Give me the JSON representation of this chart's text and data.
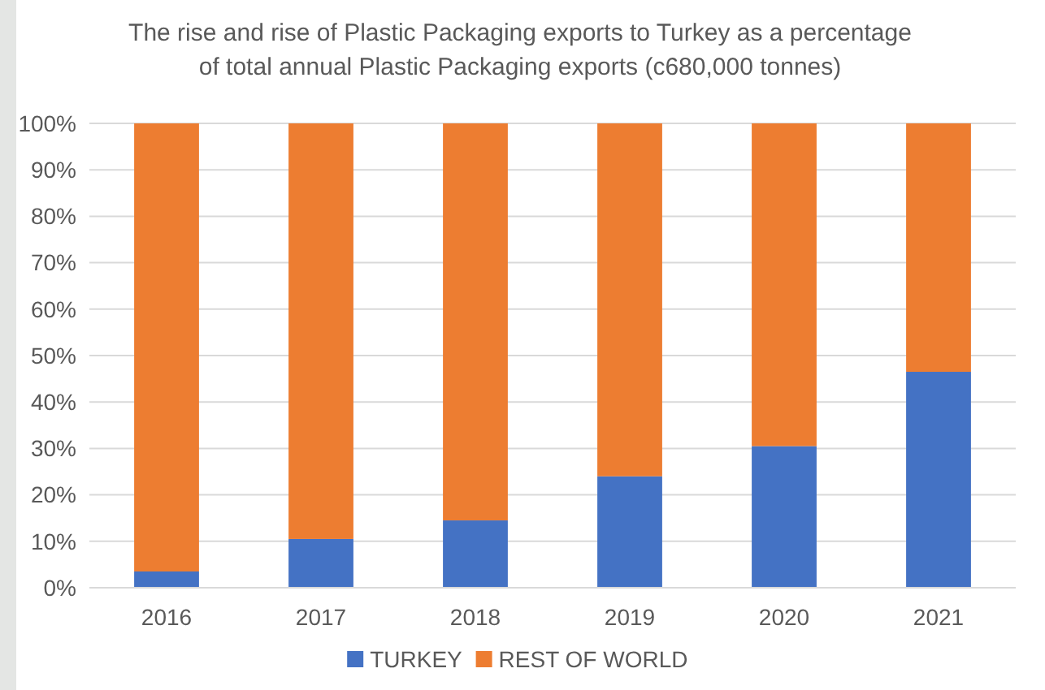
{
  "chart_data": {
    "type": "bar",
    "stacked": true,
    "title": "The rise and rise of Plastic Packaging exports to Turkey as a percentage\nof total annual Plastic Packaging exports (c680,000 tonnes)",
    "categories": [
      "2016",
      "2017",
      "2018",
      "2019",
      "2020",
      "2021"
    ],
    "series": [
      {
        "name": "TURKEY",
        "color": "#4472c4",
        "values": [
          3.5,
          10.5,
          14.5,
          24,
          30.5,
          46.5
        ]
      },
      {
        "name": "REST OF WORLD",
        "color": "#ed7d31",
        "values": [
          96.5,
          89.5,
          85.5,
          76,
          69.5,
          53.5
        ]
      }
    ],
    "ylim": [
      0,
      100
    ],
    "yticks": [
      {
        "value": 0,
        "label": "0%"
      },
      {
        "value": 10,
        "label": "10%"
      },
      {
        "value": 20,
        "label": "20%"
      },
      {
        "value": 30,
        "label": "30%"
      },
      {
        "value": 40,
        "label": "40%"
      },
      {
        "value": 50,
        "label": "50%"
      },
      {
        "value": 60,
        "label": "60%"
      },
      {
        "value": 70,
        "label": "70%"
      },
      {
        "value": 80,
        "label": "80%"
      },
      {
        "value": 90,
        "label": "90%"
      },
      {
        "value": 100,
        "label": "100%"
      }
    ],
    "grid": "y",
    "legend": "bottom"
  }
}
